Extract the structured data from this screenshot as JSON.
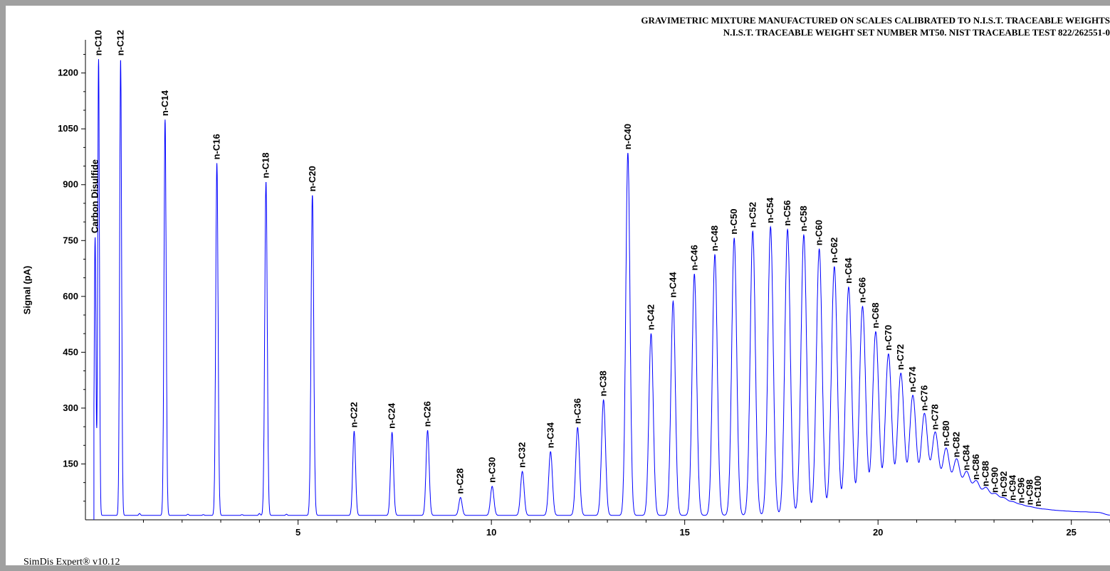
{
  "chart_data": {
    "type": "line",
    "title_lines": [
      "GRAVIMETRIC MIXTURE MANUFACTURED ON SCALES CALIBRATED TO N.I.S.T. TRACEABLE WEIGHTS",
      "N.I.S.T. TRACEABLE WEIGHT SET NUMBER MT50. NIST TRACEABLE TEST 822/262551-0"
    ],
    "ylabel": "Signal (pA)",
    "xlabel": "",
    "xlim": [
      -0.5,
      26.0
    ],
    "ylim": [
      0,
      1270
    ],
    "x_ticks": [
      5,
      10,
      15,
      20,
      25
    ],
    "y_ticks": [
      150,
      300,
      450,
      600,
      750,
      900,
      1050,
      1200
    ],
    "grid": false,
    "baseline": 12,
    "series_color": "#0000ff",
    "peaks": [
      {
        "label": "Carbon Disulfide",
        "x": -0.25,
        "y": 760,
        "w": 0.022
      },
      {
        "label": "n-C10",
        "x": -0.16,
        "y": 1237,
        "w": 0.022
      },
      {
        "label": "n-C12",
        "x": 0.41,
        "y": 1237,
        "w": 0.025
      },
      {
        "label": "n-C14",
        "x": 1.56,
        "y": 1075,
        "w": 0.028
      },
      {
        "label": "n-C16",
        "x": 2.9,
        "y": 958,
        "w": 0.03
      },
      {
        "label": "n-C18",
        "x": 4.17,
        "y": 908,
        "w": 0.032
      },
      {
        "label": "n-C20",
        "x": 5.37,
        "y": 872,
        "w": 0.034
      },
      {
        "label": "n-C22",
        "x": 6.45,
        "y": 238,
        "w": 0.036
      },
      {
        "label": "n-C24",
        "x": 7.43,
        "y": 235,
        "w": 0.038
      },
      {
        "label": "n-C26",
        "x": 8.35,
        "y": 240,
        "w": 0.04
      },
      {
        "label": "n-C28",
        "x": 9.2,
        "y": 60,
        "w": 0.042
      },
      {
        "label": "n-C30",
        "x": 10.02,
        "y": 90,
        "w": 0.044
      },
      {
        "label": "n-C32",
        "x": 10.8,
        "y": 130,
        "w": 0.046
      },
      {
        "label": "n-C34",
        "x": 11.53,
        "y": 183,
        "w": 0.048
      },
      {
        "label": "n-C36",
        "x": 12.23,
        "y": 248,
        "w": 0.05
      },
      {
        "label": "n-C38",
        "x": 12.9,
        "y": 322,
        "w": 0.052
      },
      {
        "label": "n-C40",
        "x": 13.53,
        "y": 985,
        "w": 0.054
      },
      {
        "label": "n-C42",
        "x": 14.13,
        "y": 500,
        "w": 0.056
      },
      {
        "label": "n-C44",
        "x": 14.7,
        "y": 587,
        "w": 0.058
      },
      {
        "label": "n-C46",
        "x": 15.25,
        "y": 660,
        "w": 0.06
      },
      {
        "label": "n-C48",
        "x": 15.78,
        "y": 712,
        "w": 0.062
      },
      {
        "label": "n-C50",
        "x": 16.28,
        "y": 757,
        "w": 0.064
      },
      {
        "label": "n-C52",
        "x": 16.76,
        "y": 775,
        "w": 0.066
      },
      {
        "label": "n-C54",
        "x": 17.22,
        "y": 787,
        "w": 0.068
      },
      {
        "label": "n-C56",
        "x": 17.66,
        "y": 780,
        "w": 0.07
      },
      {
        "label": "n-C58",
        "x": 18.08,
        "y": 765,
        "w": 0.072
      },
      {
        "label": "n-C60",
        "x": 18.48,
        "y": 727,
        "w": 0.074
      },
      {
        "label": "n-C62",
        "x": 18.87,
        "y": 680,
        "w": 0.076
      },
      {
        "label": "n-C64",
        "x": 19.24,
        "y": 625,
        "w": 0.078
      },
      {
        "label": "n-C66",
        "x": 19.6,
        "y": 573,
        "w": 0.08
      },
      {
        "label": "n-C68",
        "x": 19.94,
        "y": 505,
        "w": 0.082
      },
      {
        "label": "n-C70",
        "x": 20.27,
        "y": 445,
        "w": 0.084
      },
      {
        "label": "n-C72",
        "x": 20.59,
        "y": 393,
        "w": 0.086
      },
      {
        "label": "n-C74",
        "x": 20.9,
        "y": 333,
        "w": 0.088
      },
      {
        "label": "n-C76",
        "x": 21.2,
        "y": 283,
        "w": 0.09
      },
      {
        "label": "n-C78",
        "x": 21.48,
        "y": 232,
        "w": 0.092
      },
      {
        "label": "n-C80",
        "x": 21.76,
        "y": 188,
        "w": 0.094
      },
      {
        "label": "n-C82",
        "x": 22.03,
        "y": 158,
        "w": 0.096
      },
      {
        "label": "n-C84",
        "x": 22.29,
        "y": 123,
        "w": 0.098
      },
      {
        "label": "n-C86",
        "x": 22.54,
        "y": 98,
        "w": 0.1
      },
      {
        "label": "n-C88",
        "x": 22.79,
        "y": 80,
        "w": 0.102
      },
      {
        "label": "n-C90",
        "x": 23.03,
        "y": 63,
        "w": 0.104
      },
      {
        "label": "n-C92",
        "x": 23.26,
        "y": 52,
        "w": 0.106
      },
      {
        "label": "n-C94",
        "x": 23.49,
        "y": 42,
        "w": 0.108
      },
      {
        "label": "n-C96",
        "x": 23.71,
        "y": 35,
        "w": 0.11
      },
      {
        "label": "n-C98",
        "x": 23.93,
        "y": 30,
        "w": 0.112
      },
      {
        "label": "n-C100",
        "x": 24.14,
        "y": 26,
        "w": 0.114
      }
    ],
    "minor_peaks": [
      {
        "x": 0.9,
        "y": 17,
        "w": 0.02
      },
      {
        "x": 2.15,
        "y": 15,
        "w": 0.02
      },
      {
        "x": 2.55,
        "y": 14,
        "w": 0.02
      },
      {
        "x": 3.55,
        "y": 14,
        "w": 0.02
      },
      {
        "x": 4.0,
        "y": 17,
        "w": 0.02
      },
      {
        "x": 4.7,
        "y": 15,
        "w": 0.02
      },
      {
        "x": 24.35,
        "y": 24,
        "w": 0.11
      },
      {
        "x": 24.55,
        "y": 22,
        "w": 0.11
      },
      {
        "x": 24.75,
        "y": 21,
        "w": 0.11
      },
      {
        "x": 24.95,
        "y": 20,
        "w": 0.11
      },
      {
        "x": 25.15,
        "y": 19,
        "w": 0.11
      },
      {
        "x": 25.35,
        "y": 19,
        "w": 0.11
      },
      {
        "x": 25.55,
        "y": 18,
        "w": 0.11
      },
      {
        "x": 25.75,
        "y": 18,
        "w": 0.11
      }
    ]
  },
  "footer": "SimDis Expert® v10.12"
}
